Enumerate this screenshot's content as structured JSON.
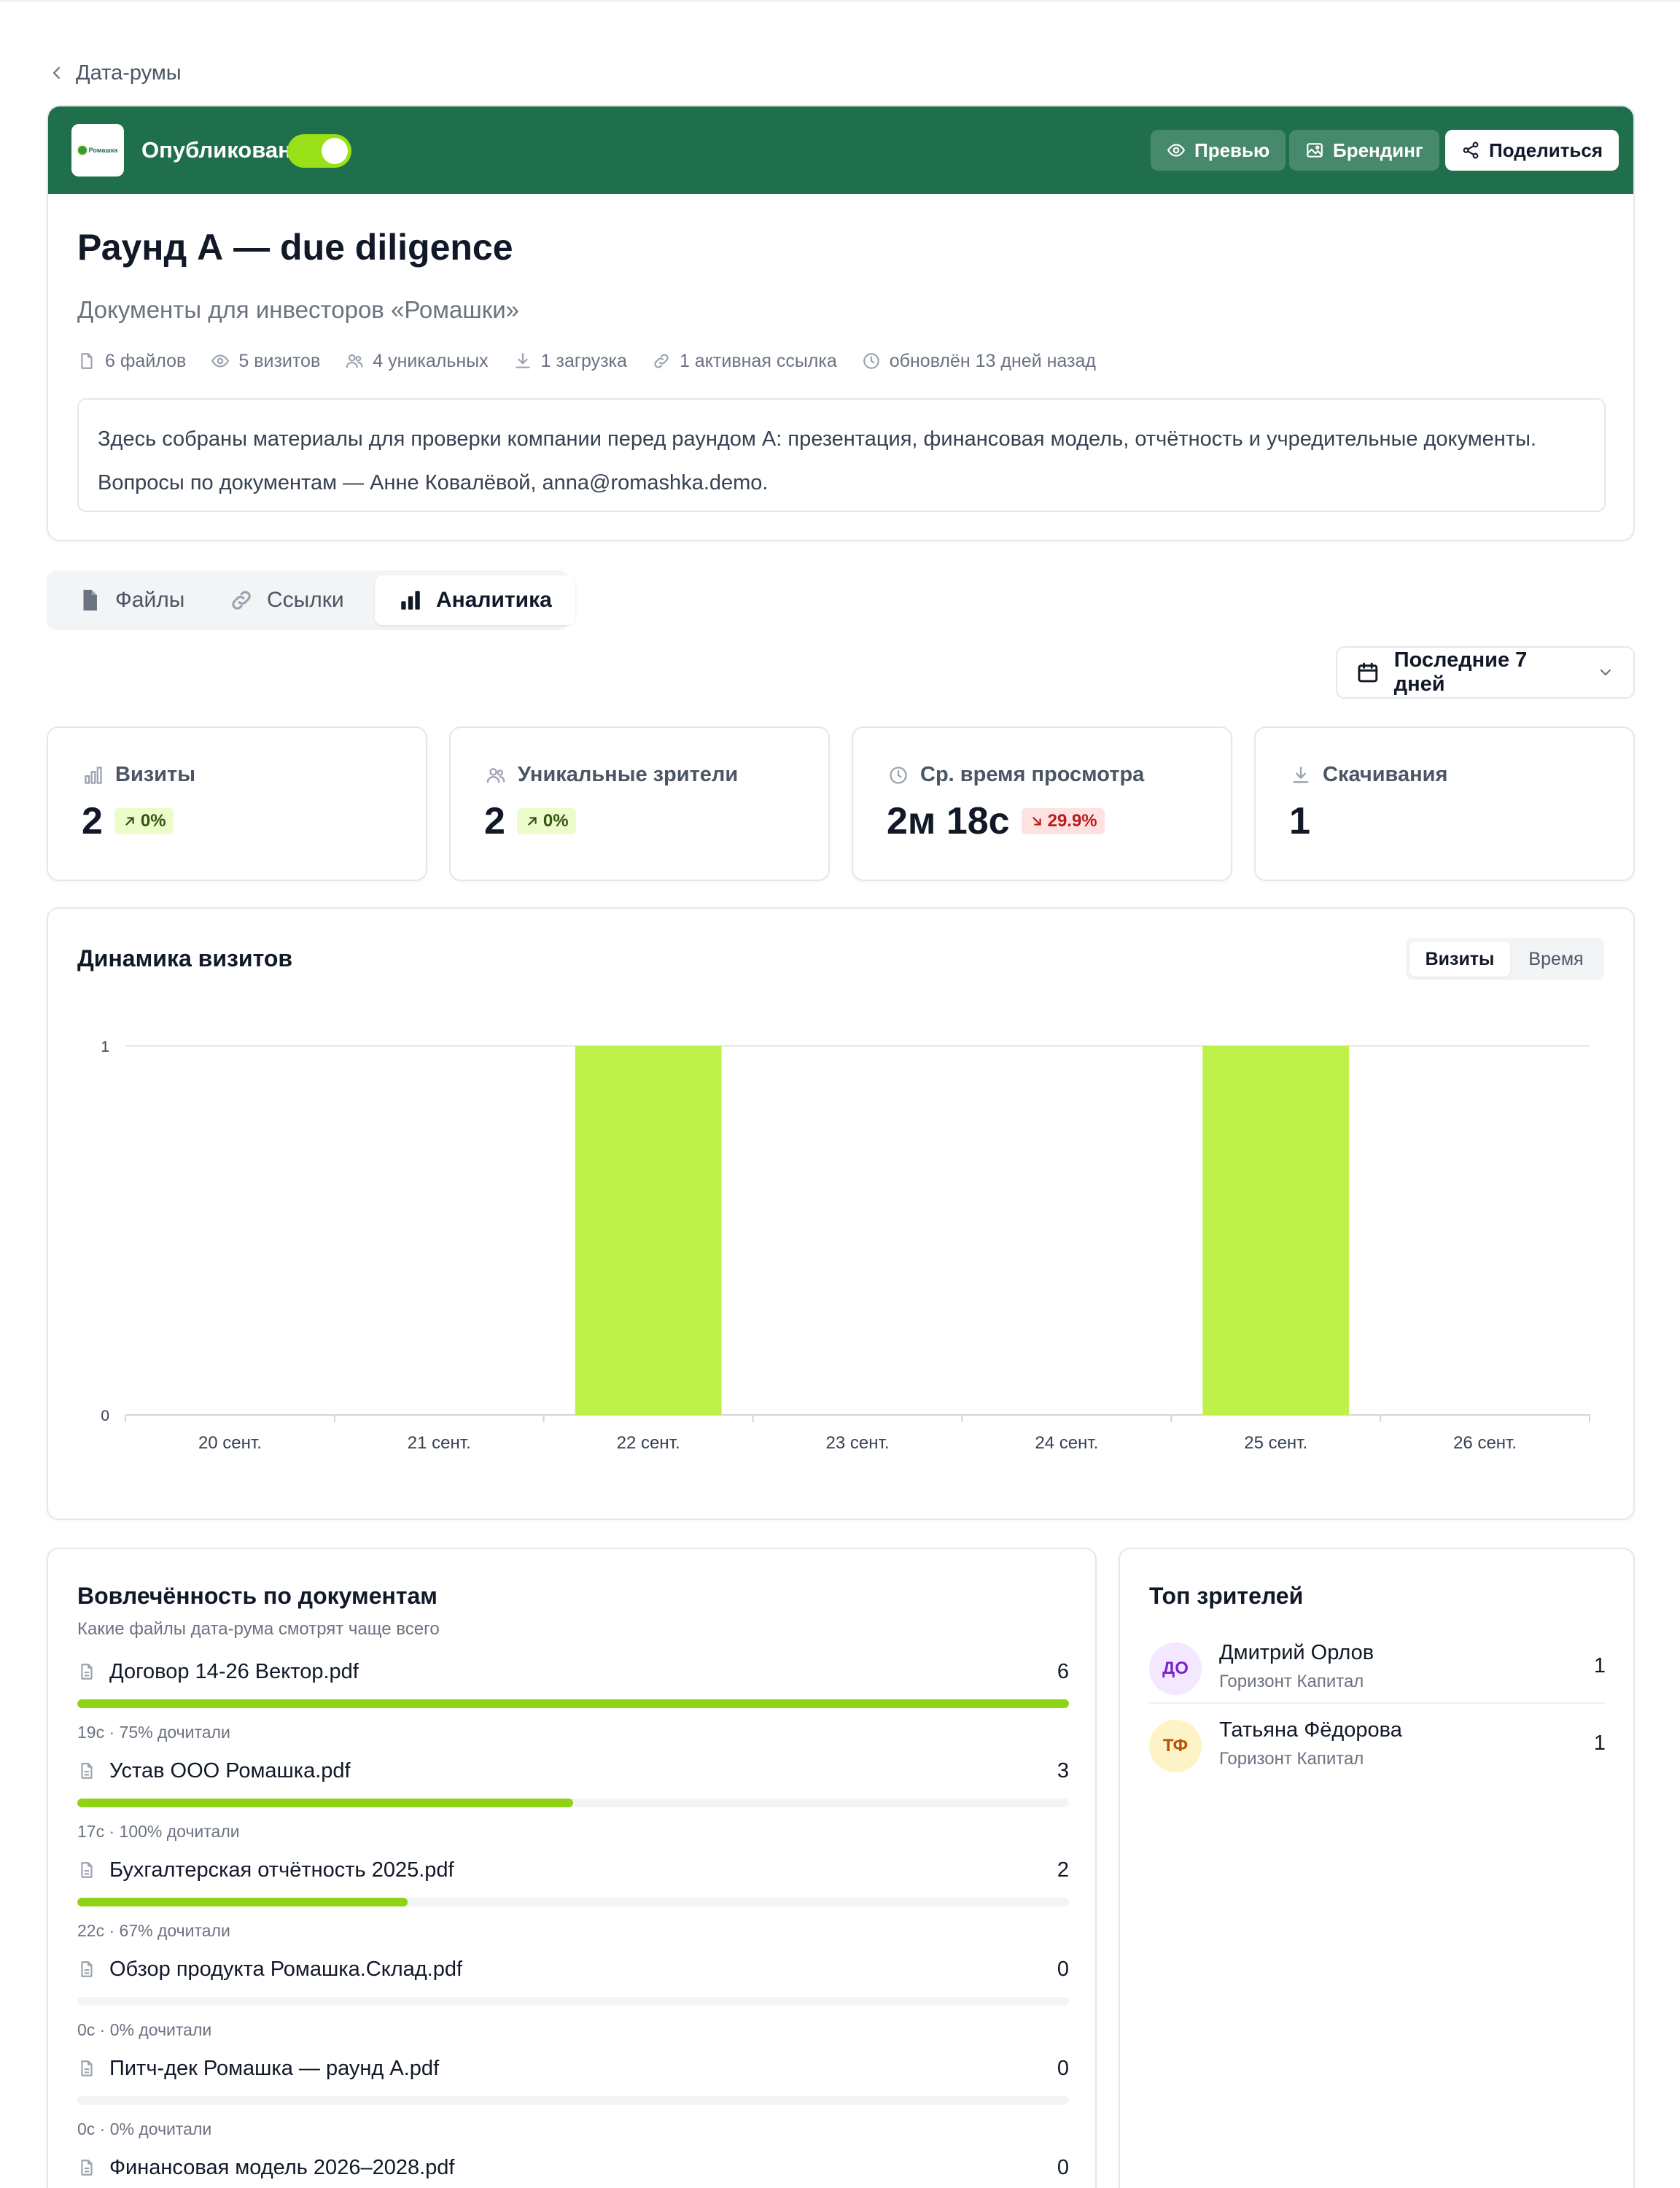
{
  "breadcrumb": {
    "label": "Дата-румы"
  },
  "room": {
    "status_label": "Опубликован",
    "published": true,
    "logo_text": "Ромашка",
    "actions": {
      "preview": "Превью",
      "branding": "Брендинг",
      "share": "Поделиться"
    },
    "title": "Раунд А — due diligence",
    "subtitle": "Документы для инвесторов «Ромашки»",
    "stats": {
      "files": "6 файлов",
      "visits": "5 визитов",
      "unique": "4 уникальных",
      "downloads": "1 загрузка",
      "links": "1 активная ссылка",
      "updated": "обновлён 13 дней назад"
    },
    "description": [
      "Здесь собраны материалы для проверки компании перед раундом А: презентация, финансовая модель, отчётность и учредительные документы.",
      "Вопросы по документам — Анне Ковалёвой, anna@romashka.demo."
    ]
  },
  "tabs": [
    {
      "label": "Файлы",
      "icon": "file-icon",
      "active": false
    },
    {
      "label": "Ссылки",
      "icon": "link-icon",
      "active": false
    },
    {
      "label": "Аналитика",
      "icon": "bar-chart-icon",
      "active": true
    }
  ],
  "period": {
    "label": "Последние 7 дней"
  },
  "kpis": [
    {
      "label": "Визиты",
      "value": "2",
      "delta": "0%",
      "trend": "up"
    },
    {
      "label": "Уникальные зрители",
      "value": "2",
      "delta": "0%",
      "trend": "up"
    },
    {
      "label": "Ср. время просмотра",
      "value": "2м 18с",
      "delta": "29.9%",
      "trend": "down"
    },
    {
      "label": "Скачивания",
      "value": "1",
      "delta": "",
      "trend": ""
    }
  ],
  "chart": {
    "title": "Динамика визитов",
    "toggle": {
      "visits": "Визиты",
      "time": "Время",
      "active": "visits"
    }
  },
  "chart_data": {
    "type": "bar",
    "title": "",
    "xlabel": "",
    "ylabel": "",
    "categories": [
      "20 сент.",
      "21 сент.",
      "22 сент.",
      "23 сент.",
      "24 сент.",
      "25 сент.",
      "26 сент."
    ],
    "values": [
      0,
      0,
      1,
      0,
      0,
      1,
      0
    ],
    "ylim": [
      0,
      1
    ],
    "yticks": [
      "0",
      "1"
    ],
    "grid": true,
    "legend": "none",
    "color": "#bef24a"
  },
  "engagement": {
    "title": "Вовлечённость по документам",
    "subtitle": "Какие файлы дата-рума смотрят чаще всего",
    "docs": [
      {
        "name": "Договор 14-26 Вектор.pdf",
        "count": "6",
        "share": 1.0,
        "meta": "19с · 75% дочитали"
      },
      {
        "name": "Устав ООО Ромашка.pdf",
        "count": "3",
        "share": 0.5,
        "meta": "17с · 100% дочитали"
      },
      {
        "name": "Бухгалтерская отчётность 2025.pdf",
        "count": "2",
        "share": 0.333,
        "meta": "22с · 67% дочитали"
      },
      {
        "name": "Обзор продукта Ромашка.Склад.pdf",
        "count": "0",
        "share": 0,
        "meta": "0с · 0% дочитали"
      },
      {
        "name": "Питч-дек Ромашка — раунд А.pdf",
        "count": "0",
        "share": 0,
        "meta": "0с · 0% дочитали"
      },
      {
        "name": "Финансовая модель 2026–2028.pdf",
        "count": "0",
        "share": 0,
        "meta": ""
      }
    ]
  },
  "viewers": {
    "title": "Топ зрителей",
    "items": [
      {
        "initials": "ДО",
        "name": "Дмитрий Орлов",
        "org": "Горизонт Капитал",
        "count": "1",
        "color": "#7e22ce"
      },
      {
        "initials": "ТФ",
        "name": "Татьяна Фёдорова",
        "org": "Горизонт Капитал",
        "count": "1",
        "color": "#b45309"
      }
    ]
  }
}
